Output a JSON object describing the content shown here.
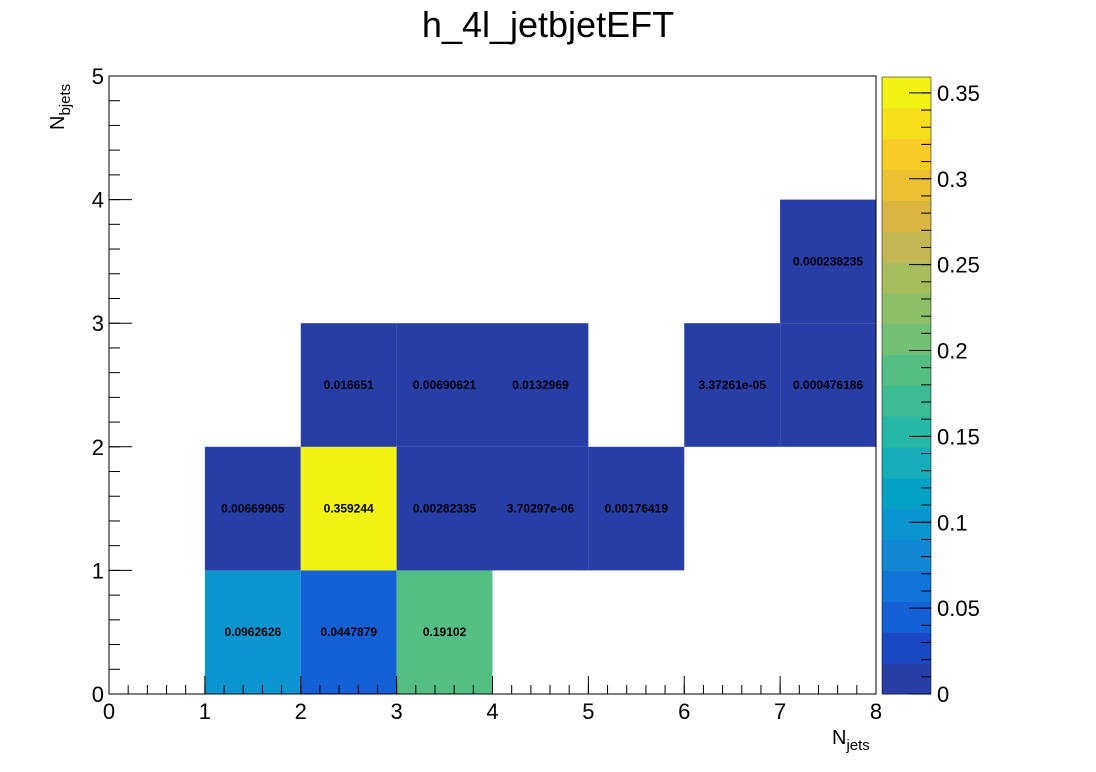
{
  "chart_data": {
    "type": "heatmap",
    "title": "h_4l_jetbjetEFT",
    "xlabel": "N",
    "xlabel_sub": "jets",
    "ylabel": "N",
    "ylabel_sub": "bjets",
    "xlim": [
      0,
      8
    ],
    "ylim": [
      0,
      5
    ],
    "x_ticks": [
      "0",
      "1",
      "2",
      "3",
      "4",
      "5",
      "6",
      "7",
      "8"
    ],
    "y_ticks": [
      "0",
      "1",
      "2",
      "3",
      "4",
      "5"
    ],
    "colorbar": {
      "range": [
        0,
        0.359244
      ],
      "ticks": [
        "0",
        "0.05",
        "0.1",
        "0.15",
        "0.2",
        "0.25",
        "0.3",
        "0.35"
      ],
      "tick_values": [
        0,
        0.05,
        0.1,
        0.15,
        0.2,
        0.25,
        0.3,
        0.35
      ],
      "palette": "viridis-like"
    },
    "cells": [
      {
        "x": 1,
        "y": 0,
        "value": 0.0962626,
        "label": "0.0962626"
      },
      {
        "x": 2,
        "y": 0,
        "value": 0.0447879,
        "label": "0.0447879"
      },
      {
        "x": 3,
        "y": 0,
        "value": 0.19102,
        "label": "0.19102"
      },
      {
        "x": 1,
        "y": 1,
        "value": 0.00669905,
        "label": "0.00669905"
      },
      {
        "x": 2,
        "y": 1,
        "value": 0.359244,
        "label": "0.359244"
      },
      {
        "x": 3,
        "y": 1,
        "value": 0.00282335,
        "label": "0.00282335"
      },
      {
        "x": 4,
        "y": 1,
        "value": 3.70297e-06,
        "label": "3.70297e-06"
      },
      {
        "x": 5,
        "y": 1,
        "value": 0.00176419,
        "label": "0.00176419"
      },
      {
        "x": 2,
        "y": 2,
        "value": 0.016651,
        "label": "0.016651"
      },
      {
        "x": 3,
        "y": 2,
        "value": 0.00690621,
        "label": "0.00690621"
      },
      {
        "x": 4,
        "y": 2,
        "value": 0.0132969,
        "label": "0.0132969"
      },
      {
        "x": 6,
        "y": 2,
        "value": 3.37261e-05,
        "label": "3.37261e-05"
      },
      {
        "x": 7,
        "y": 2,
        "value": 0.000476186,
        "label": "0.000476186"
      },
      {
        "x": 7,
        "y": 3,
        "value": 0.000238235,
        "label": "0.000238235"
      }
    ]
  }
}
